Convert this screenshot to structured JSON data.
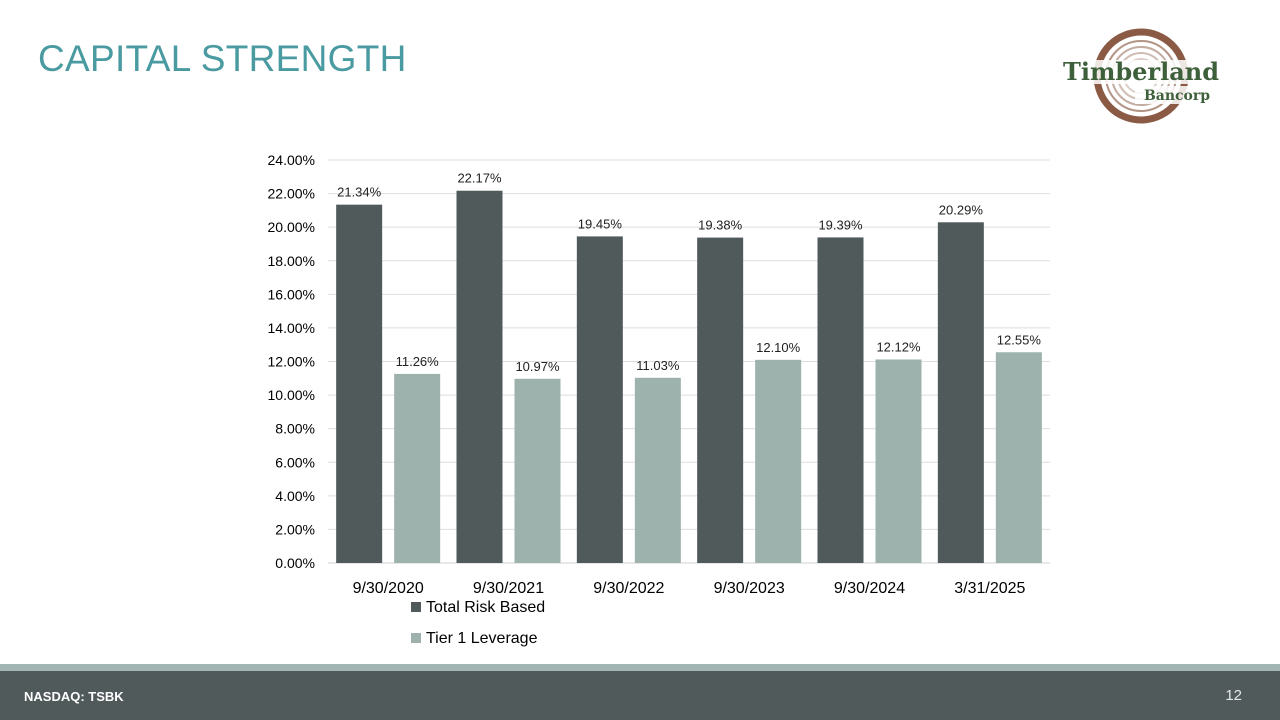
{
  "slide": {
    "title": "CAPITAL STRENGTH",
    "footer_ticker": "NASDAQ: TSBK",
    "page_number": "12"
  },
  "logo": {
    "name": "Timberland",
    "sub": "Bancorp",
    "icon": "tree-ring-logo",
    "text_color": "#3d5f3a",
    "ring_color": "#8a5a44"
  },
  "chart_data": {
    "type": "bar",
    "title": "",
    "xlabel": "",
    "ylabel": "",
    "categories": [
      "9/30/2020",
      "9/30/2021",
      "9/30/2022",
      "9/30/2023",
      "9/30/2024",
      "3/31/2025"
    ],
    "series": [
      {
        "name": "Total Risk Based",
        "values": [
          21.34,
          22.17,
          19.45,
          19.38,
          19.39,
          20.29
        ],
        "labels": [
          "21.34%",
          "22.17%",
          "19.45%",
          "19.38%",
          "19.39%",
          "20.29%"
        ],
        "color": "#515a5b"
      },
      {
        "name": "Tier 1 Leverage",
        "values": [
          11.26,
          10.97,
          11.03,
          12.1,
          12.12,
          12.55
        ],
        "labels": [
          "11.26%",
          "10.97%",
          "11.03%",
          "12.10%",
          "12.12%",
          "12.55%"
        ],
        "color": "#9db2ad"
      }
    ],
    "ylim": [
      0,
      24
    ],
    "yticks": [
      "0.00%",
      "2.00%",
      "4.00%",
      "6.00%",
      "8.00%",
      "10.00%",
      "12.00%",
      "14.00%",
      "16.00%",
      "18.00%",
      "20.00%",
      "22.00%",
      "24.00%"
    ],
    "grid": true,
    "legend_position": "bottom-left"
  }
}
